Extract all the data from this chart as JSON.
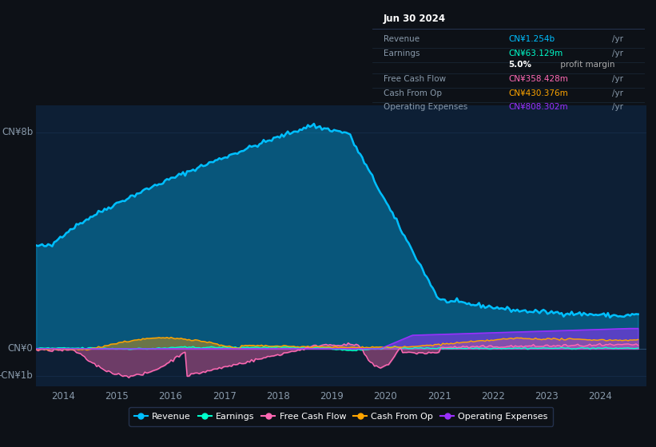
{
  "bg_color": "#0d1117",
  "plot_bg_color": "#0d1f35",
  "grid_color": "#1e3a5f",
  "ylabel_text": "CN¥8b",
  "ylabel2_text": "CN¥0",
  "ylabel3_text": "-CN¥1b",
  "x_ticks": [
    2014,
    2015,
    2016,
    2017,
    2018,
    2019,
    2020,
    2021,
    2022,
    2023,
    2024
  ],
  "colors": {
    "revenue": "#00bfff",
    "earnings": "#00ffcc",
    "free_cash_flow": "#ff69b4",
    "cash_from_op": "#ffa500",
    "operating_expenses": "#9b30ff"
  },
  "legend": [
    {
      "label": "Revenue",
      "color": "#00bfff"
    },
    {
      "label": "Earnings",
      "color": "#00ffcc"
    },
    {
      "label": "Free Cash Flow",
      "color": "#ff69b4"
    },
    {
      "label": "Cash From Op",
      "color": "#ffa500"
    },
    {
      "label": "Operating Expenses",
      "color": "#9b30ff"
    }
  ],
  "info_box": {
    "title": "Jun 30 2024",
    "rows": [
      {
        "label": "Revenue",
        "value": "CN¥1.254b",
        "unit": "/yr",
        "color": "#00bfff"
      },
      {
        "label": "Earnings",
        "value": "CN¥63.129m",
        "unit": "/yr",
        "color": "#00ffcc"
      },
      {
        "label": "",
        "value": "5.0%",
        "extra": " profit margin",
        "color": "white"
      },
      {
        "label": "Free Cash Flow",
        "value": "CN¥358.428m",
        "unit": "/yr",
        "color": "#ff69b4"
      },
      {
        "label": "Cash From Op",
        "value": "CN¥430.376m",
        "unit": "/yr",
        "color": "#ffa500"
      },
      {
        "label": "Operating Expenses",
        "value": "CN¥808.302m",
        "unit": "/yr",
        "color": "#9b30ff"
      }
    ]
  }
}
